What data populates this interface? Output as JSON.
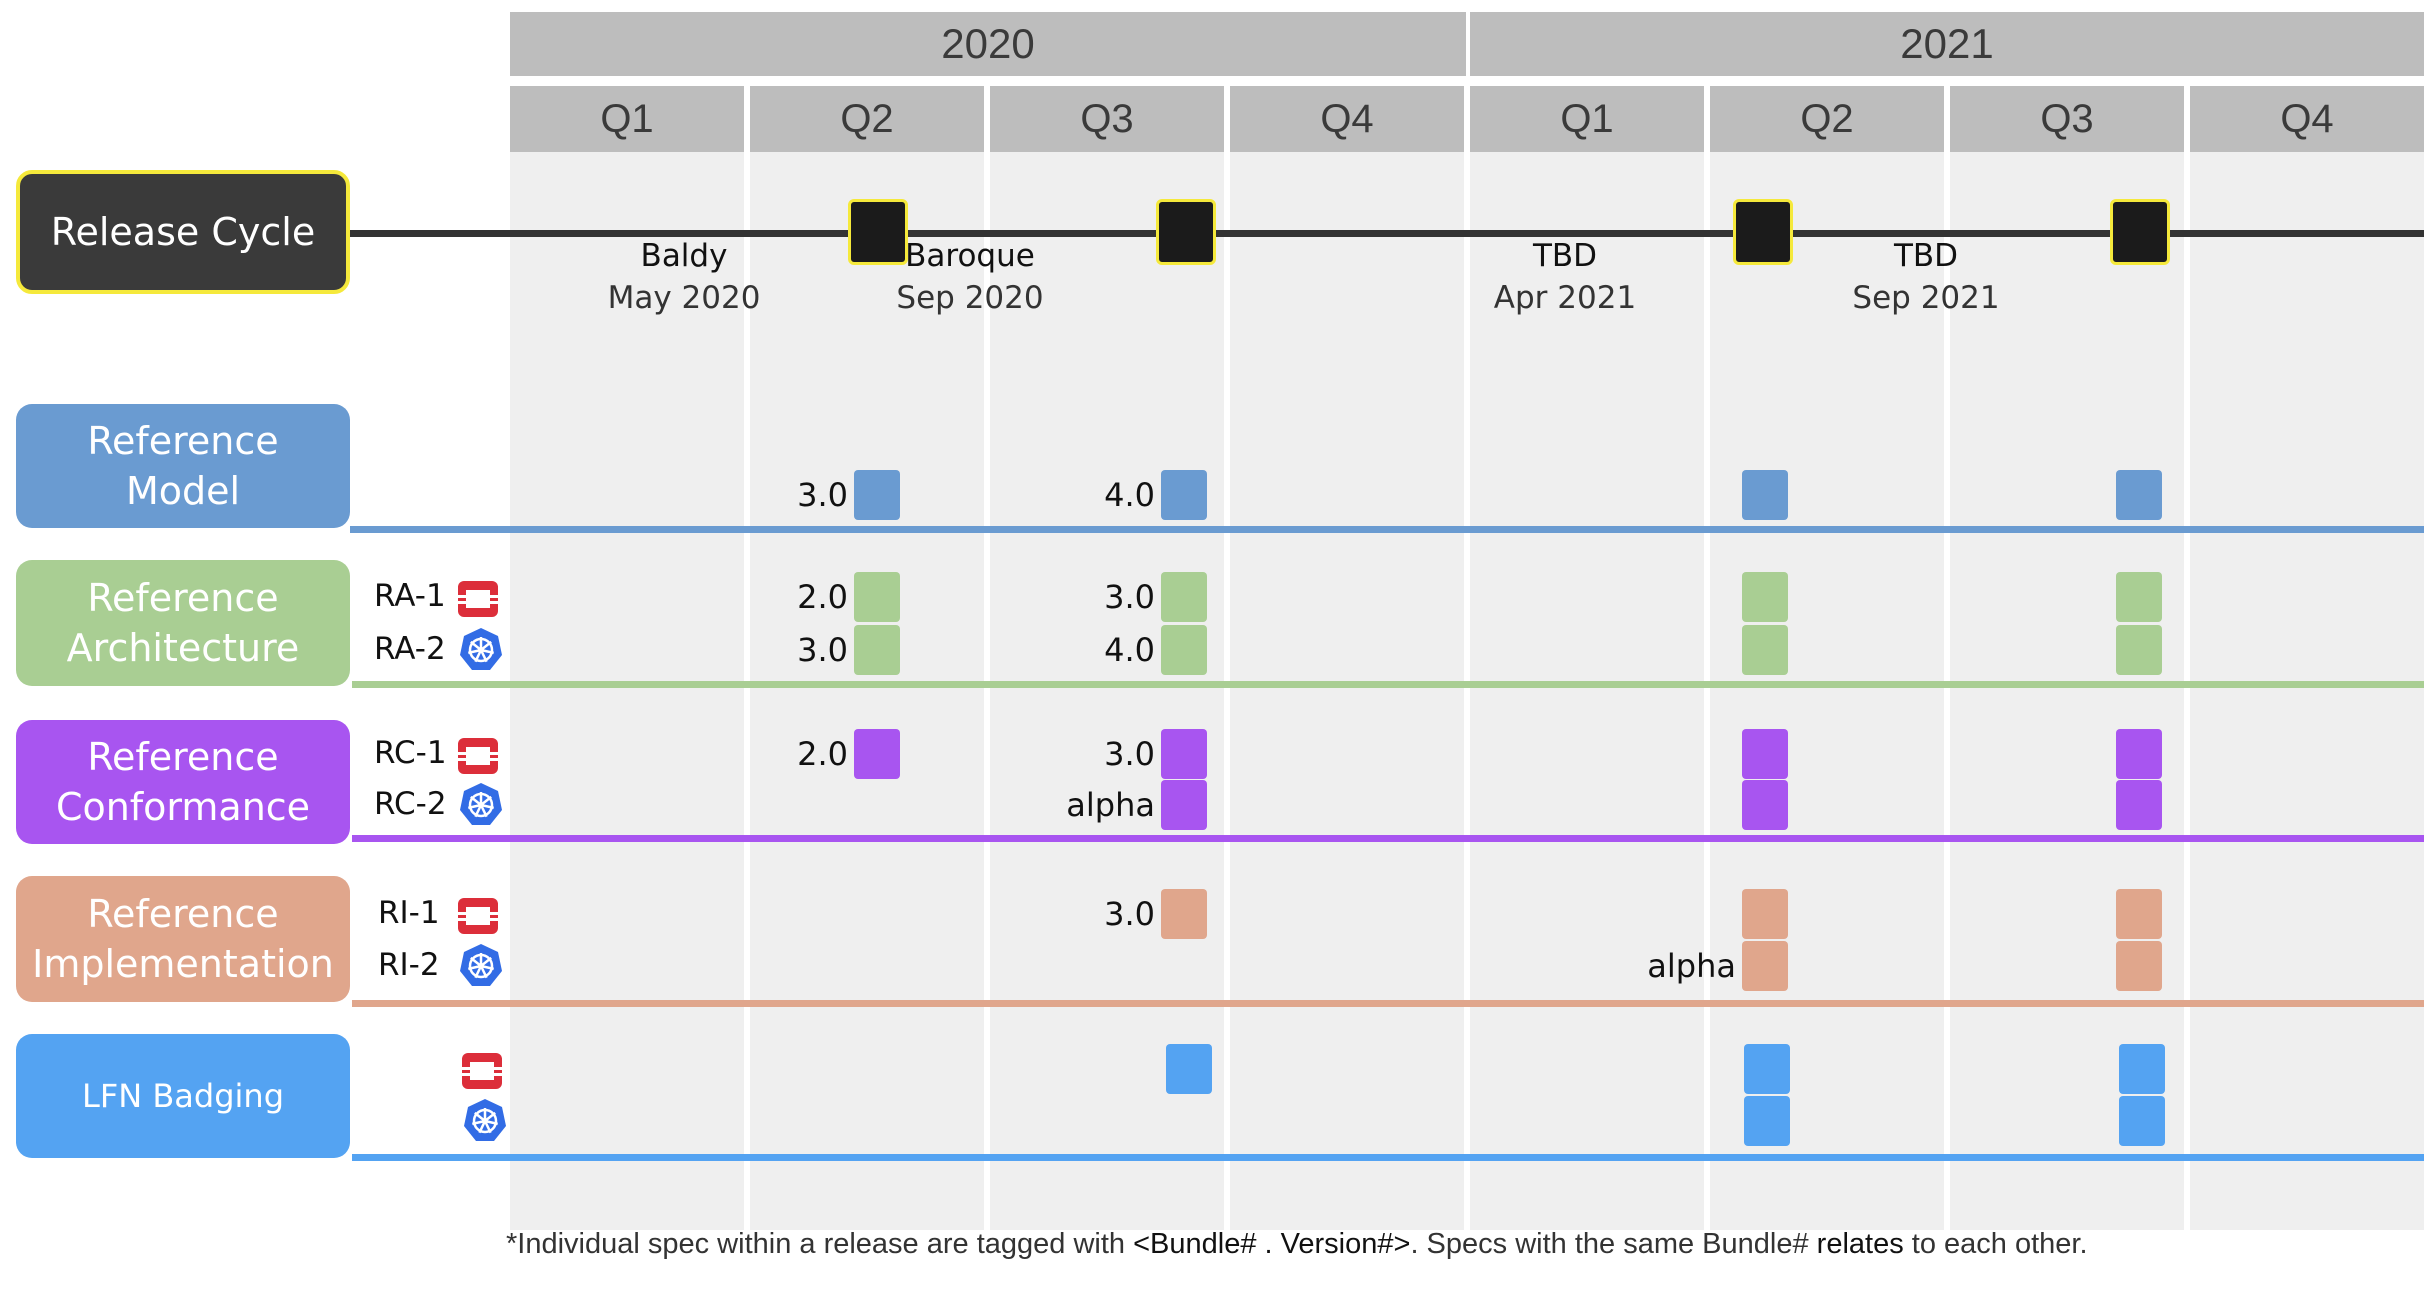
{
  "years": [
    "2020",
    "2021"
  ],
  "quarters": [
    "Q1",
    "Q2",
    "Q3",
    "Q4",
    "Q1",
    "Q2",
    "Q3",
    "Q4"
  ],
  "release_cycle": {
    "label": "Release Cycle",
    "releases": [
      {
        "name": "Baldy",
        "date": "May 2020"
      },
      {
        "name": "Baroque",
        "date": "Sep 2020"
      },
      {
        "name": "TBD",
        "date": "Apr 2021"
      },
      {
        "name": "TBD",
        "date": "Sep 2021"
      }
    ]
  },
  "categories": [
    {
      "label": "Reference\nModel",
      "color": "#6a9bd1",
      "rows": [
        {
          "label": "",
          "icon": "",
          "versions": [
            "3.0",
            "4.0",
            "",
            ""
          ]
        }
      ]
    },
    {
      "label": "Reference\nArchitecture",
      "color": "#a9ce93",
      "rows": [
        {
          "label": "RA-1",
          "icon": "openstack-icon",
          "versions": [
            "2.0",
            "3.0",
            "",
            ""
          ]
        },
        {
          "label": "RA-2",
          "icon": "kubernetes-icon",
          "versions": [
            "3.0",
            "4.0",
            "",
            ""
          ]
        }
      ]
    },
    {
      "label": "Reference\nConformance",
      "color": "#a855f0",
      "rows": [
        {
          "label": "RC-1",
          "icon": "openstack-icon",
          "versions": [
            "2.0",
            "3.0",
            "",
            ""
          ]
        },
        {
          "label": "RC-2",
          "icon": "kubernetes-icon",
          "versions": [
            "",
            "alpha",
            "",
            ""
          ]
        }
      ]
    },
    {
      "label": "Reference\nImplementation",
      "color": "#e0a68c",
      "rows": [
        {
          "label": "RI-1",
          "icon": "openstack-icon",
          "versions": [
            "",
            "3.0",
            "",
            ""
          ]
        },
        {
          "label": "RI-2",
          "icon": "kubernetes-icon",
          "versions": [
            "",
            "",
            "alpha",
            ""
          ]
        }
      ]
    },
    {
      "label": "LFN Badging",
      "color": "#54a3f2",
      "rows": [
        {
          "label": "",
          "icon": "openstack-icon",
          "versions": [
            "",
            "",
            "",
            ""
          ]
        },
        {
          "label": "",
          "icon": "kubernetes-icon",
          "versions": [
            "",
            "",
            "",
            ""
          ]
        }
      ]
    }
  ],
  "footnote": {
    "p1": "*Individual spec within a release are tagged with ",
    "b1": "<Bundle# . Version#>",
    "p2": ". Specs with the same Bundle# ",
    "b2": "relates",
    "p3": " to each other."
  },
  "colors": {
    "header_gray": "#bdbdbd",
    "grid_gray": "#efefef",
    "milestone_border": "#f5e93b",
    "dark": "#3a3a3a"
  }
}
